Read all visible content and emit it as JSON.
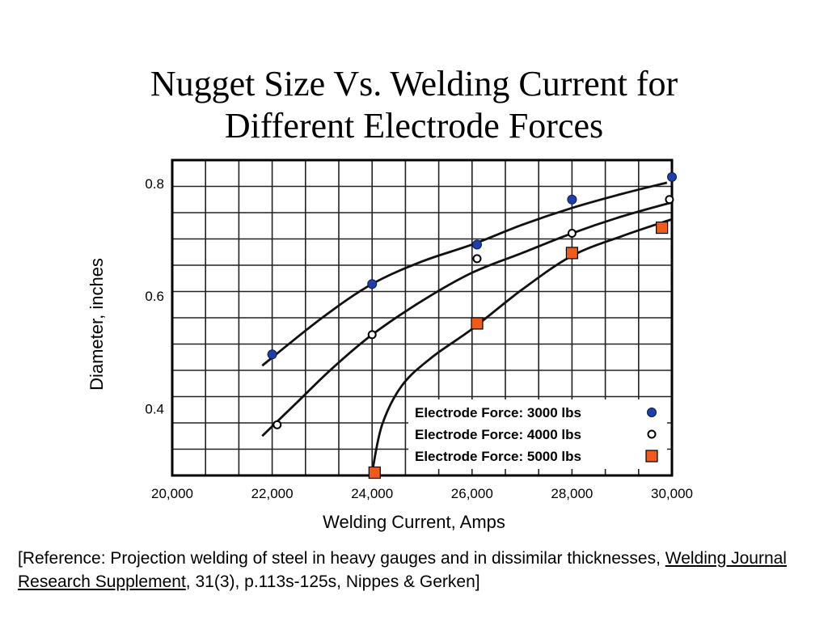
{
  "title": {
    "line1": "Nugget Size Vs. Welding Current for",
    "line2": "Different Electrode Forces"
  },
  "reference": {
    "part1": "[Reference:  Projection welding of steel in heavy gauges and in dissimilar thicknesses, ",
    "journal": "Welding Journal Research Supplement",
    "part2": ", 31(3), p.113s-125s, Nippes & Gerken]"
  },
  "chart_data": {
    "type": "scatter",
    "xlabel": "Welding Current, Amps",
    "ylabel": "Diameter, inches",
    "xlim": [
      20000,
      30000
    ],
    "ylim": [
      0.28,
      0.84
    ],
    "x_ticks": [
      20000,
      22000,
      24000,
      26000,
      28000,
      30000
    ],
    "x_tick_labels": [
      "20,000",
      "22,000",
      "24,000",
      "26,000",
      "28,000",
      "30,000"
    ],
    "y_ticks": [
      0.4,
      0.6,
      0.8
    ],
    "y_tick_labels": [
      "0.4",
      "0.6",
      "0.8"
    ],
    "grid": true,
    "legend_position": "bottom-right",
    "series": [
      {
        "name": "Electrode Force: 3000 lbs",
        "marker": "filled-circle",
        "color": "#1f3fa8",
        "points": [
          [
            22000,
            0.495
          ],
          [
            24000,
            0.62
          ],
          [
            26100,
            0.69
          ],
          [
            28000,
            0.77
          ],
          [
            30000,
            0.81
          ]
        ],
        "curve": [
          [
            21800,
            0.475
          ],
          [
            23000,
            0.56
          ],
          [
            24000,
            0.62
          ],
          [
            25000,
            0.66
          ],
          [
            26000,
            0.69
          ],
          [
            27000,
            0.725
          ],
          [
            28000,
            0.755
          ],
          [
            29000,
            0.78
          ],
          [
            29900,
            0.8
          ]
        ]
      },
      {
        "name": "Electrode Force: 4000 lbs",
        "marker": "open-circle",
        "color": "#000000",
        "points": [
          [
            22100,
            0.37
          ],
          [
            24000,
            0.53
          ],
          [
            26100,
            0.665
          ],
          [
            28000,
            0.71
          ],
          [
            29950,
            0.77
          ]
        ],
        "curve": [
          [
            21800,
            0.35
          ],
          [
            22500,
            0.41
          ],
          [
            23200,
            0.47
          ],
          [
            24000,
            0.53
          ],
          [
            25000,
            0.59
          ],
          [
            26000,
            0.64
          ],
          [
            27000,
            0.675
          ],
          [
            28000,
            0.71
          ],
          [
            29000,
            0.74
          ],
          [
            30000,
            0.765
          ]
        ]
      },
      {
        "name": "Electrode Force: 5000 lbs",
        "marker": "filled-square",
        "color": "#f05a1a",
        "points": [
          [
            24050,
            0.285
          ],
          [
            26100,
            0.55
          ],
          [
            28000,
            0.675
          ],
          [
            29800,
            0.72
          ]
        ],
        "curve": [
          [
            24000,
            0.285
          ],
          [
            24200,
            0.37
          ],
          [
            24600,
            0.44
          ],
          [
            25200,
            0.49
          ],
          [
            26000,
            0.54
          ],
          [
            27000,
            0.61
          ],
          [
            28000,
            0.67
          ],
          [
            29000,
            0.705
          ],
          [
            30000,
            0.735
          ]
        ]
      }
    ]
  }
}
